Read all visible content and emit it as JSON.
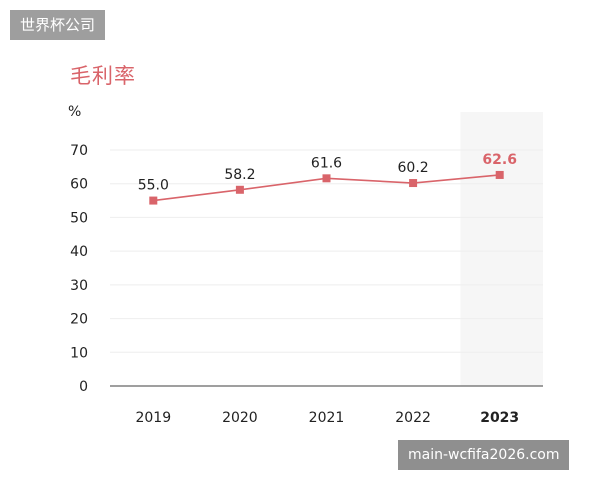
{
  "header": {
    "badge": "世界杯公司"
  },
  "footer": {
    "badge": "main-wcfifa2026.com"
  },
  "colors": {
    "line": "#d9646a",
    "grid": "#eeeeee",
    "axis": "#666666",
    "highlight_band": "#f6f6f6"
  },
  "chart_data": {
    "type": "line",
    "title": "毛利率",
    "ylabel": "%",
    "categories": [
      "2019",
      "2020",
      "2021",
      "2022",
      "2023"
    ],
    "series": [
      {
        "values": [
          55.0,
          58.2,
          61.6,
          60.2,
          62.6
        ]
      }
    ],
    "value_labels": [
      "55.0",
      "58.2",
      "61.6",
      "60.2",
      "62.6"
    ],
    "ylim": [
      0,
      70
    ],
    "yticks": [
      0,
      10,
      20,
      30,
      40,
      50,
      60,
      70
    ],
    "highlight_category": "2023",
    "grid": true
  }
}
